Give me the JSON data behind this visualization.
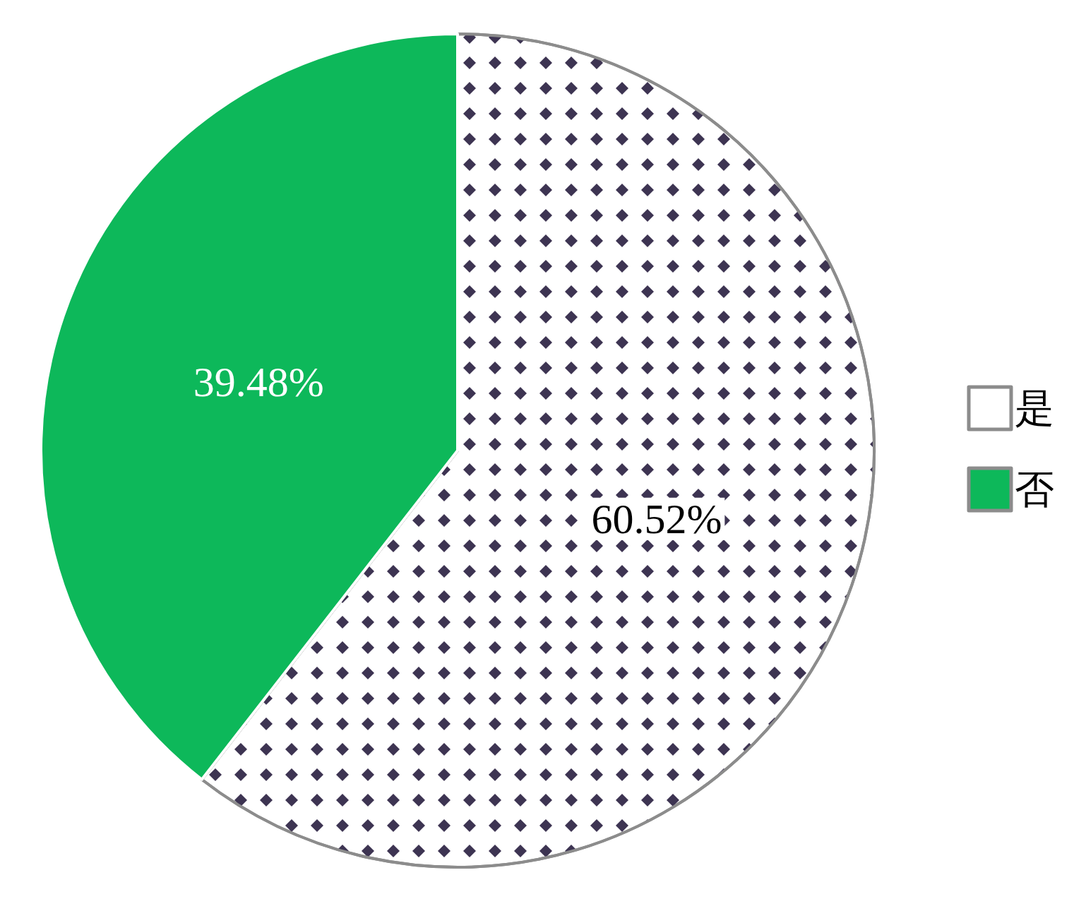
{
  "chart_data": {
    "type": "pie",
    "categories": [
      "是",
      "否"
    ],
    "values": [
      60.52,
      39.48
    ],
    "colors": [
      "#ffffff",
      "#0db85a"
    ],
    "value_labels": [
      "60.52%",
      "39.48%"
    ],
    "legend": "right"
  }
}
